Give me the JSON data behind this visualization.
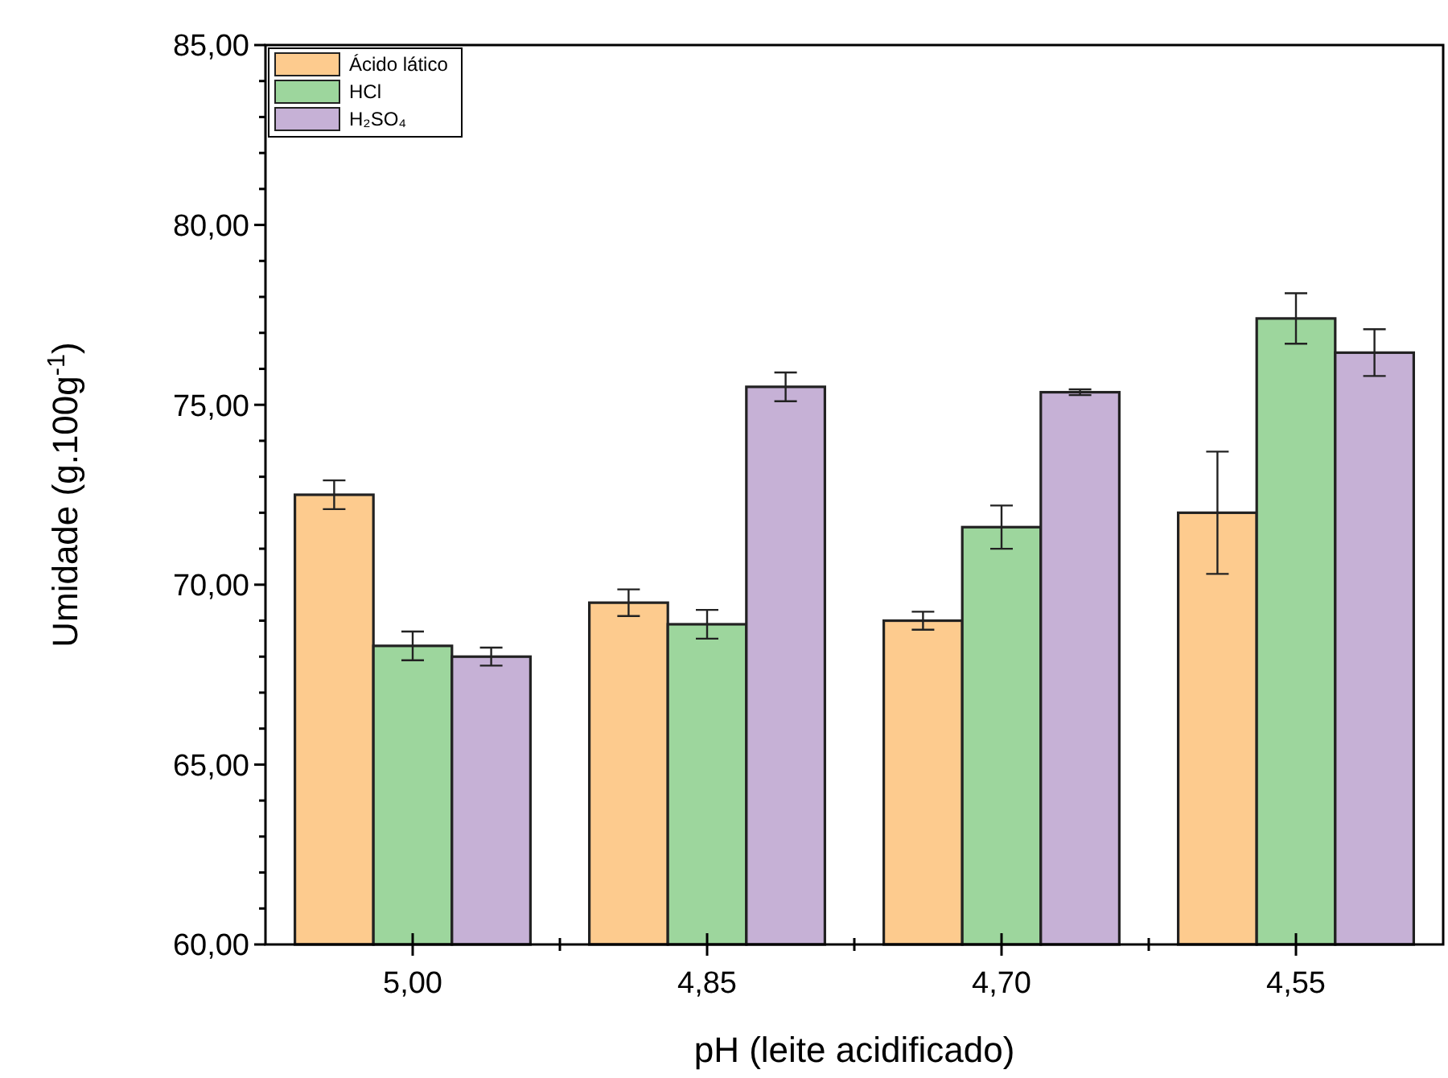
{
  "chart_data": {
    "type": "bar",
    "xlabel": "pH (leite acidificado)",
    "ylabel": "Umidade (g.100g$^{-1}$)",
    "categories": [
      "5,00",
      "4,85",
      "4,70",
      "4,55"
    ],
    "series": [
      {
        "name": "Ácido lático",
        "color": "#fdcb8e",
        "values": [
          72.5,
          69.5,
          69.0,
          72.0
        ],
        "errors": [
          0.4,
          0.37,
          0.25,
          1.7
        ]
      },
      {
        "name": "HCl",
        "color": "#9dd69d",
        "values": [
          68.3,
          68.9,
          71.6,
          77.4
        ],
        "errors": [
          0.4,
          0.4,
          0.6,
          0.7
        ]
      },
      {
        "name": "H₂SO₄",
        "color": "#c6b1d6",
        "values": [
          68.0,
          75.5,
          75.35,
          76.45
        ],
        "errors": [
          0.25,
          0.4,
          0.08,
          0.65
        ]
      }
    ],
    "ylim": [
      60,
      85
    ],
    "yticks": [
      {
        "value": 60,
        "label": "60,00"
      },
      {
        "value": 61,
        "label": null
      },
      {
        "value": 62,
        "label": null
      },
      {
        "value": 63,
        "label": null
      },
      {
        "value": 64,
        "label": null
      },
      {
        "value": 65,
        "label": "65,00"
      },
      {
        "value": 66,
        "label": null
      },
      {
        "value": 67,
        "label": null
      },
      {
        "value": 68,
        "label": null
      },
      {
        "value": 69,
        "label": null
      },
      {
        "value": 70,
        "label": "70,00"
      },
      {
        "value": 71,
        "label": null
      },
      {
        "value": 72,
        "label": null
      },
      {
        "value": 73,
        "label": null
      },
      {
        "value": 74,
        "label": null
      },
      {
        "value": 75,
        "label": "75,00"
      },
      {
        "value": 76,
        "label": null
      },
      {
        "value": 77,
        "label": null
      },
      {
        "value": 78,
        "label": null
      },
      {
        "value": 79,
        "label": null
      },
      {
        "value": 80,
        "label": "80,00"
      },
      {
        "value": 81,
        "label": null
      },
      {
        "value": 82,
        "label": null
      },
      {
        "value": 83,
        "label": null
      },
      {
        "value": 84,
        "label": null
      },
      {
        "value": 85,
        "label": "85,00"
      }
    ],
    "grid": false,
    "legend": "top left"
  }
}
